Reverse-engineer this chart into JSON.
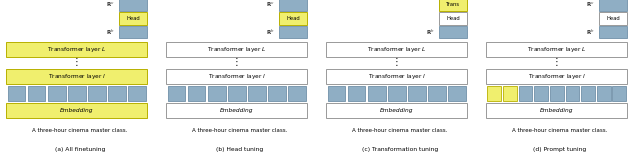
{
  "panels": [
    {
      "title": "(a) All finetuning",
      "transformer_fill": "#f0ef6e",
      "embedding_fill": "#f0ef6e",
      "head_fill": "#f0ef6e",
      "head_edge": "#b8b000",
      "trans_show": false,
      "prompt_tokens": 0
    },
    {
      "title": "(b) Head tuning",
      "transformer_fill": "#ffffff",
      "embedding_fill": "#ffffff",
      "head_fill": "#f0ef6e",
      "head_edge": "#b8b000",
      "trans_show": false,
      "prompt_tokens": 0
    },
    {
      "title": "(c) Transformation tuning",
      "transformer_fill": "#ffffff",
      "embedding_fill": "#ffffff",
      "head_fill": "#ffffff",
      "head_edge": "#999999",
      "trans_show": true,
      "prompt_tokens": 0
    },
    {
      "title": "(d) Prompt tuning",
      "transformer_fill": "#ffffff",
      "embedding_fill": "#ffffff",
      "head_fill": "#ffffff",
      "head_edge": "#999999",
      "trans_show": false,
      "prompt_tokens": 2
    }
  ],
  "sentence": "A three-hour cinema master class.",
  "num_tokens": 7,
  "yellow": "#f0ef6e",
  "yellow_edge": "#b8b000",
  "blue": "#8faec4",
  "blue_edge": "#7090a8",
  "gray_edge": "#999999",
  "white": "#ffffff"
}
